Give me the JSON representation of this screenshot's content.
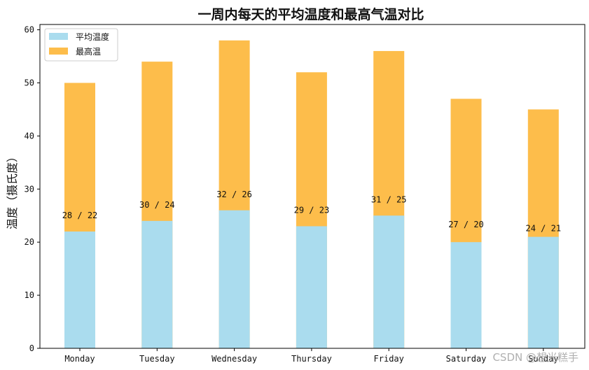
{
  "chart_data": {
    "type": "bar",
    "stacked": false,
    "title": "一周内每天的平均温度和最高气温对比",
    "xlabel": "",
    "ylabel": "温度（摄氏度）",
    "ylim": [
      0,
      61
    ],
    "yticks": [
      0,
      10,
      20,
      30,
      40,
      50,
      60
    ],
    "categories": [
      "Monday",
      "Tuesday",
      "Wednesday",
      "Thursday",
      "Friday",
      "Saturday",
      "Sunday"
    ],
    "series": [
      {
        "name": "最高温",
        "color": "#fdbd4b",
        "values": [
          50,
          54,
          58,
          52,
          56,
          47,
          45
        ]
      },
      {
        "name": "平均温度",
        "color": "#aadcee",
        "values": [
          22,
          24,
          26,
          23,
          25,
          20,
          21
        ]
      }
    ],
    "data_labels": [
      "28 / 22",
      "30 / 24",
      "32 / 26",
      "29 / 23",
      "31 / 25",
      "27 / 20",
      "24 / 21"
    ],
    "data_label_values": [
      25,
      27,
      29,
      26,
      28,
      23.3,
      22.6
    ],
    "legend": {
      "position": "top-left",
      "entries": [
        {
          "label": "平均温度",
          "color": "#aadcee"
        },
        {
          "label": "最高温",
          "color": "#fdbd4b"
        }
      ]
    },
    "grid": false
  },
  "watermark": "CSDN @想光糕手"
}
